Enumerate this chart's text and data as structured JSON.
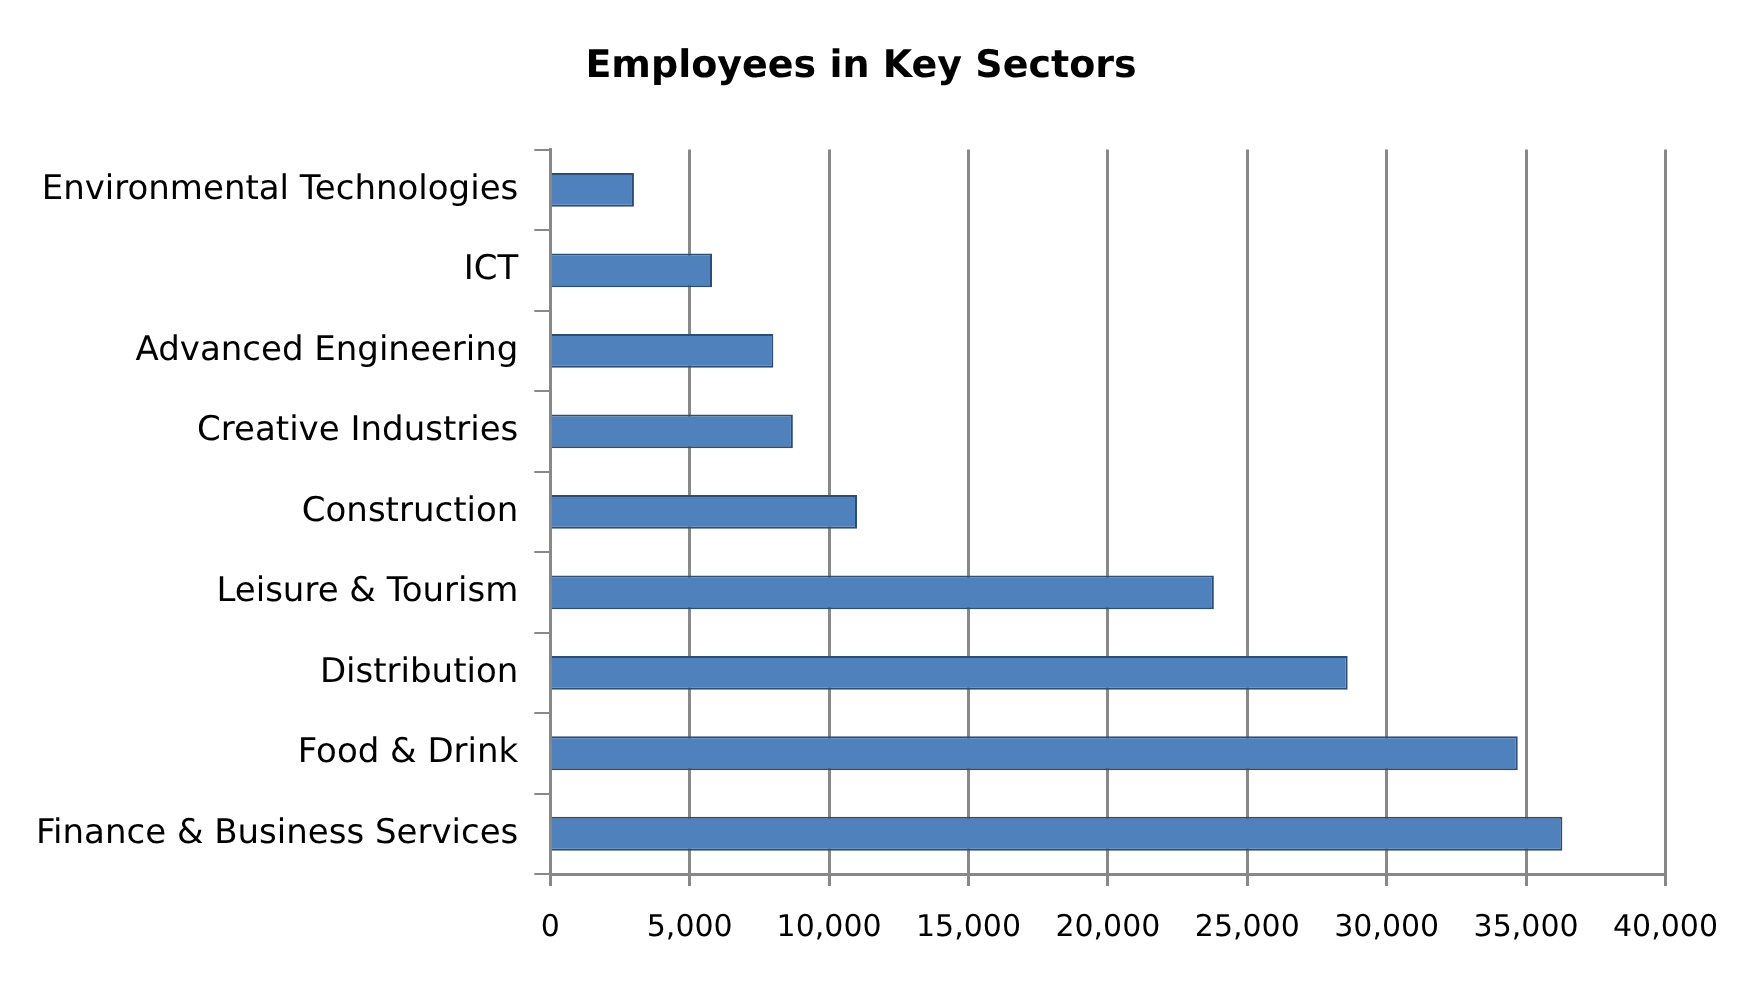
{
  "chart_data": {
    "type": "bar",
    "orientation": "horizontal",
    "title": "Employees in Key Sectors",
    "categories": [
      "Environmental Technologies",
      "ICT",
      "Advanced Engineering",
      "Creative Industries",
      "Construction",
      "Leisure & Tourism",
      "Distribution",
      "Food & Drink",
      "Finance & Business Services"
    ],
    "values": [
      3000,
      5800,
      8000,
      8700,
      11000,
      23800,
      28600,
      34700,
      36300
    ],
    "color": "#4f81bd",
    "xlim": [
      0,
      40000
    ],
    "xticks": [
      0,
      {
        "value": 5000,
        "label": "5,000"
      },
      {
        "value": 10000,
        "label": "10,000"
      },
      {
        "value": 15000,
        "label": "15,000"
      },
      {
        "value": 20000,
        "label": "20,000"
      },
      {
        "value": 25000,
        "label": "25,000"
      },
      {
        "value": 30000,
        "label": "30,000"
      },
      {
        "value": 35000,
        "label": "35,000"
      },
      {
        "value": 40000,
        "label": "40,000"
      }
    ],
    "grid": "x",
    "legend": false
  }
}
